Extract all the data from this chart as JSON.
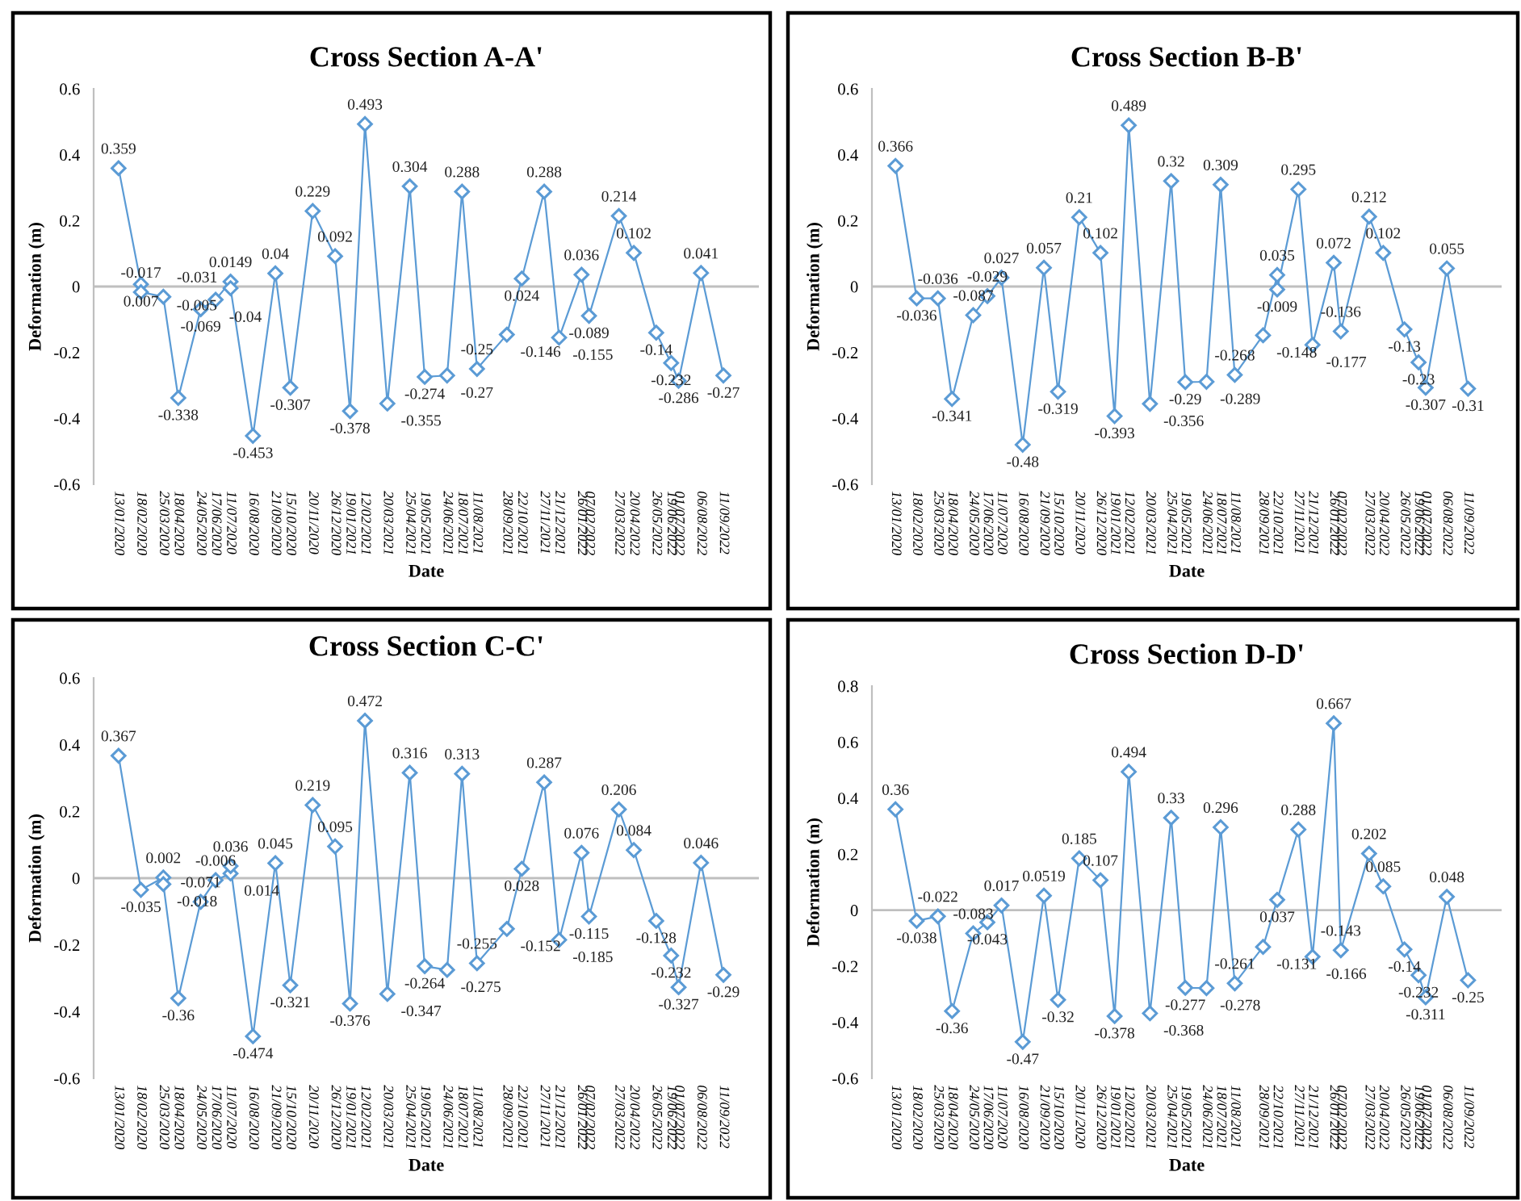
{
  "chart_data": [
    {
      "type": "line",
      "title": "Cross Section A-A'",
      "xlabel": "Date",
      "ylabel": "Deformation (m)",
      "marker": "diamond",
      "data_labels": true,
      "grid": false,
      "xlim": [
        "2019-12-04",
        "2022-11-07"
      ],
      "ylim": [
        -0.6,
        0.6
      ],
      "yticks": [
        -0.6,
        -0.4,
        -0.2,
        0,
        0.2,
        0.4,
        0.6
      ],
      "xticks": [
        {
          "value": "2020-01-13",
          "label": "13/01/2020"
        },
        {
          "value": "2020-02-18",
          "label": "18/02/2020"
        },
        {
          "value": "2020-03-25",
          "label": "25/03/2020"
        },
        {
          "value": "2020-04-18",
          "label": "18/04/2020"
        },
        {
          "value": "2020-05-24",
          "label": "24/05/2020"
        },
        {
          "value": "2020-06-17",
          "label": "17/06/2020"
        },
        {
          "value": "2020-07-11",
          "label": "11/07/2020"
        },
        {
          "value": "2020-08-16",
          "label": "16/08/2020"
        },
        {
          "value": "2020-09-21",
          "label": "21/09/2020"
        },
        {
          "value": "2020-10-15",
          "label": "15/10/2020"
        },
        {
          "value": "2020-11-20",
          "label": "20/11/2020"
        },
        {
          "value": "2020-12-26",
          "label": "26/12/2020"
        },
        {
          "value": "2021-01-19",
          "label": "19/01/2021"
        },
        {
          "value": "2021-02-12",
          "label": "12/02/2021"
        },
        {
          "value": "2021-03-20",
          "label": "20/03/2021"
        },
        {
          "value": "2021-04-25",
          "label": "25/04/2021"
        },
        {
          "value": "2021-05-19",
          "label": "19/05/2021"
        },
        {
          "value": "2021-06-24",
          "label": "24/06/2021"
        },
        {
          "value": "2021-07-18",
          "label": "18/07/2021"
        },
        {
          "value": "2021-08-11",
          "label": "11/08/2021"
        },
        {
          "value": "2021-09-28",
          "label": "28/09/2021"
        },
        {
          "value": "2021-10-22",
          "label": "22/10/2021"
        },
        {
          "value": "2021-11-27",
          "label": "27/11/2021"
        },
        {
          "value": "2021-12-21",
          "label": "21/12/2021"
        },
        {
          "value": "2022-01-26",
          "label": "26/01/2022"
        },
        {
          "value": "2022-02-07",
          "label": "07/02/2022"
        },
        {
          "value": "2022-03-27",
          "label": "27/03/2022"
        },
        {
          "value": "2022-04-20",
          "label": "20/04/2022"
        },
        {
          "value": "2022-05-26",
          "label": "26/05/2022"
        },
        {
          "value": "2022-06-19",
          "label": "19/06/2022"
        },
        {
          "value": "2022-07-01",
          "label": "01/07/2022"
        },
        {
          "value": "2022-08-06",
          "label": "06/08/2022"
        },
        {
          "value": "2022-09-11",
          "label": "11/09/2022"
        }
      ],
      "ref_lines": [
        {
          "axis": "y",
          "value": 0,
          "color": "#bfbfbf"
        }
      ],
      "series": [
        {
          "color": "#5b9bd5",
          "x": [
            "2020-01-13",
            "2020-02-18",
            "2020-02-18",
            "2020-03-25",
            "2020-04-18",
            "2020-05-24",
            "2020-06-17",
            "2020-07-11",
            "2020-07-11",
            "2020-08-16",
            "2020-09-21",
            "2020-10-15",
            "2020-11-20",
            "2020-12-26",
            "2021-01-19",
            "2021-02-12",
            "2021-03-20",
            "2021-04-25",
            "2021-05-19",
            "2021-06-24",
            "2021-07-18",
            "2021-08-11",
            "2021-09-28",
            "2021-10-22",
            "2021-11-27",
            "2021-12-21",
            "2022-01-26",
            "2022-02-07",
            "2022-03-27",
            "2022-04-20",
            "2022-05-26",
            "2022-06-19",
            "2022-07-01",
            "2022-08-06",
            "2022-09-11"
          ],
          "values": [
            0.359,
            0.007,
            -0.017,
            -0.031,
            -0.338,
            -0.069,
            -0.04,
            0.0149,
            -0.005,
            -0.453,
            0.04,
            -0.307,
            0.229,
            0.092,
            -0.378,
            0.493,
            -0.355,
            0.304,
            -0.274,
            -0.27,
            0.288,
            -0.25,
            -0.146,
            0.024,
            0.288,
            -0.155,
            0.036,
            -0.089,
            0.214,
            0.102,
            -0.14,
            -0.232,
            -0.286,
            0.041,
            -0.27
          ]
        }
      ]
    },
    {
      "type": "line",
      "title": "Cross Section B-B'",
      "xlabel": "Date",
      "ylabel": "Deformation (m)",
      "marker": "diamond",
      "data_labels": true,
      "grid": false,
      "xlim": [
        "2019-12-04",
        "2022-11-07"
      ],
      "ylim": [
        -0.6,
        0.6
      ],
      "yticks": [
        -0.6,
        -0.4,
        -0.2,
        0,
        0.2,
        0.4,
        0.6
      ],
      "xticks": [
        {
          "value": "2020-01-13",
          "label": "13/01/2020"
        },
        {
          "value": "2020-02-18",
          "label": "18/02/2020"
        },
        {
          "value": "2020-03-25",
          "label": "25/03/2020"
        },
        {
          "value": "2020-04-18",
          "label": "18/04/2020"
        },
        {
          "value": "2020-05-24",
          "label": "24/05/2020"
        },
        {
          "value": "2020-06-17",
          "label": "17/06/2020"
        },
        {
          "value": "2020-07-11",
          "label": "11/07/2020"
        },
        {
          "value": "2020-08-16",
          "label": "16/08/2020"
        },
        {
          "value": "2020-09-21",
          "label": "21/09/2020"
        },
        {
          "value": "2020-10-15",
          "label": "15/10/2020"
        },
        {
          "value": "2020-11-20",
          "label": "20/11/2020"
        },
        {
          "value": "2020-12-26",
          "label": "26/12/2020"
        },
        {
          "value": "2021-01-19",
          "label": "19/01/2021"
        },
        {
          "value": "2021-02-12",
          "label": "12/02/2021"
        },
        {
          "value": "2021-03-20",
          "label": "20/03/2021"
        },
        {
          "value": "2021-04-25",
          "label": "25/04/2021"
        },
        {
          "value": "2021-05-19",
          "label": "19/05/2021"
        },
        {
          "value": "2021-06-24",
          "label": "24/06/2021"
        },
        {
          "value": "2021-07-18",
          "label": "18/07/2021"
        },
        {
          "value": "2021-08-11",
          "label": "11/08/2021"
        },
        {
          "value": "2021-09-28",
          "label": "28/09/2021"
        },
        {
          "value": "2021-10-22",
          "label": "22/10/2021"
        },
        {
          "value": "2021-11-27",
          "label": "27/11/2021"
        },
        {
          "value": "2021-12-21",
          "label": "21/12/2021"
        },
        {
          "value": "2022-01-26",
          "label": "26/01/2022"
        },
        {
          "value": "2022-02-07",
          "label": "07/02/2022"
        },
        {
          "value": "2022-03-27",
          "label": "27/03/2022"
        },
        {
          "value": "2022-04-20",
          "label": "20/04/2022"
        },
        {
          "value": "2022-05-26",
          "label": "26/05/2022"
        },
        {
          "value": "2022-06-19",
          "label": "19/06/2022"
        },
        {
          "value": "2022-07-01",
          "label": "01/07/2022"
        },
        {
          "value": "2022-08-06",
          "label": "06/08/2022"
        },
        {
          "value": "2022-09-11",
          "label": "11/09/2022"
        }
      ],
      "ref_lines": [
        {
          "axis": "y",
          "value": 0,
          "color": "#bfbfbf"
        }
      ],
      "series": [
        {
          "color": "#5b9bd5",
          "x": [
            "2020-01-13",
            "2020-02-18",
            "2020-03-25",
            "2020-04-18",
            "2020-05-24",
            "2020-06-17",
            "2020-07-11",
            "2020-08-16",
            "2020-09-21",
            "2020-10-15",
            "2020-11-20",
            "2020-12-26",
            "2021-01-19",
            "2021-02-12",
            "2021-03-20",
            "2021-04-25",
            "2021-05-19",
            "2021-06-24",
            "2021-07-18",
            "2021-08-11",
            "2021-09-28",
            "2021-10-22",
            "2021-10-22",
            "2021-11-27",
            "2021-12-21",
            "2022-01-26",
            "2022-02-07",
            "2022-03-27",
            "2022-04-20",
            "2022-05-26",
            "2022-06-19",
            "2022-07-01",
            "2022-08-06",
            "2022-09-11"
          ],
          "values": [
            0.366,
            -0.036,
            -0.036,
            -0.341,
            -0.087,
            -0.029,
            0.027,
            -0.48,
            0.057,
            -0.319,
            0.21,
            0.102,
            -0.393,
            0.489,
            -0.356,
            0.32,
            -0.29,
            -0.289,
            0.309,
            -0.268,
            -0.148,
            0.035,
            -0.009,
            0.295,
            -0.177,
            0.072,
            -0.136,
            0.212,
            0.102,
            -0.13,
            -0.23,
            -0.307,
            0.055,
            -0.31
          ]
        }
      ]
    },
    {
      "type": "line",
      "title": "Cross Section C-C'",
      "xlabel": "Date",
      "ylabel": "Deformation (m)",
      "marker": "diamond",
      "data_labels": true,
      "grid": false,
      "xlim": [
        "2019-12-04",
        "2022-11-07"
      ],
      "ylim": [
        -0.6,
        0.6
      ],
      "yticks": [
        -0.6,
        -0.4,
        -0.2,
        0,
        0.2,
        0.4,
        0.6
      ],
      "xticks": [
        {
          "value": "2020-01-13",
          "label": "13/01/2020"
        },
        {
          "value": "2020-02-18",
          "label": "18/02/2020"
        },
        {
          "value": "2020-03-25",
          "label": "25/03/2020"
        },
        {
          "value": "2020-04-18",
          "label": "18/04/2020"
        },
        {
          "value": "2020-05-24",
          "label": "24/05/2020"
        },
        {
          "value": "2020-06-17",
          "label": "17/06/2020"
        },
        {
          "value": "2020-07-11",
          "label": "11/07/2020"
        },
        {
          "value": "2020-08-16",
          "label": "16/08/2020"
        },
        {
          "value": "2020-09-21",
          "label": "21/09/2020"
        },
        {
          "value": "2020-10-15",
          "label": "15/10/2020"
        },
        {
          "value": "2020-11-20",
          "label": "20/11/2020"
        },
        {
          "value": "2020-12-26",
          "label": "26/12/2020"
        },
        {
          "value": "2021-01-19",
          "label": "19/01/2021"
        },
        {
          "value": "2021-02-12",
          "label": "12/02/2021"
        },
        {
          "value": "2021-03-20",
          "label": "20/03/2021"
        },
        {
          "value": "2021-04-25",
          "label": "25/04/2021"
        },
        {
          "value": "2021-05-19",
          "label": "19/05/2021"
        },
        {
          "value": "2021-06-24",
          "label": "24/06/2021"
        },
        {
          "value": "2021-07-18",
          "label": "18/07/2021"
        },
        {
          "value": "2021-08-11",
          "label": "11/08/2021"
        },
        {
          "value": "2021-09-28",
          "label": "28/09/2021"
        },
        {
          "value": "2021-10-22",
          "label": "22/10/2021"
        },
        {
          "value": "2021-11-27",
          "label": "27/11/2021"
        },
        {
          "value": "2021-12-21",
          "label": "21/12/2021"
        },
        {
          "value": "2022-01-26",
          "label": "26/01/2022"
        },
        {
          "value": "2022-02-07",
          "label": "07/02/2022"
        },
        {
          "value": "2022-03-27",
          "label": "27/03/2022"
        },
        {
          "value": "2022-04-20",
          "label": "20/04/2022"
        },
        {
          "value": "2022-05-26",
          "label": "26/05/2022"
        },
        {
          "value": "2022-06-19",
          "label": "19/06/2022"
        },
        {
          "value": "2022-07-01",
          "label": "01/07/2022"
        },
        {
          "value": "2022-08-06",
          "label": "06/08/2022"
        },
        {
          "value": "2022-09-11",
          "label": "11/09/2022"
        }
      ],
      "ref_lines": [
        {
          "axis": "y",
          "value": 0,
          "color": "#bfbfbf"
        }
      ],
      "series": [
        {
          "color": "#5b9bd5",
          "x": [
            "2020-01-13",
            "2020-02-18",
            "2020-03-25",
            "2020-03-25",
            "2020-04-18",
            "2020-05-24",
            "2020-06-17",
            "2020-07-11",
            "2020-07-11",
            "2020-08-16",
            "2020-09-21",
            "2020-10-15",
            "2020-11-20",
            "2020-12-26",
            "2021-01-19",
            "2021-02-12",
            "2021-03-20",
            "2021-04-25",
            "2021-05-19",
            "2021-06-24",
            "2021-07-18",
            "2021-08-11",
            "2021-09-28",
            "2021-10-22",
            "2021-11-27",
            "2021-12-21",
            "2022-01-26",
            "2022-02-07",
            "2022-03-27",
            "2022-04-20",
            "2022-05-26",
            "2022-06-19",
            "2022-07-01",
            "2022-08-06",
            "2022-09-11"
          ],
          "values": [
            0.367,
            -0.035,
            0.002,
            -0.018,
            -0.36,
            -0.071,
            -0.006,
            0.014,
            0.036,
            -0.474,
            0.045,
            -0.321,
            0.219,
            0.095,
            -0.376,
            0.472,
            -0.347,
            0.316,
            -0.264,
            -0.275,
            0.313,
            -0.255,
            -0.152,
            0.028,
            0.287,
            -0.185,
            0.076,
            -0.115,
            0.206,
            0.084,
            -0.128,
            -0.232,
            -0.327,
            0.046,
            -0.29
          ]
        }
      ]
    },
    {
      "type": "line",
      "title": "Cross Section D-D'",
      "xlabel": "Date",
      "ylabel": "Deformation (m)",
      "marker": "diamond",
      "data_labels": true,
      "grid": false,
      "xlim": [
        "2019-12-04",
        "2022-11-07"
      ],
      "ylim": [
        -0.6,
        0.8
      ],
      "yticks": [
        -0.6,
        -0.4,
        -0.2,
        0,
        0.2,
        0.4,
        0.6,
        0.8
      ],
      "xticks": [
        {
          "value": "2020-01-13",
          "label": "13/01/2020"
        },
        {
          "value": "2020-02-18",
          "label": "18/02/2020"
        },
        {
          "value": "2020-03-25",
          "label": "25/03/2020"
        },
        {
          "value": "2020-04-18",
          "label": "18/04/2020"
        },
        {
          "value": "2020-05-24",
          "label": "24/05/2020"
        },
        {
          "value": "2020-06-17",
          "label": "17/06/2020"
        },
        {
          "value": "2020-07-11",
          "label": "11/07/2020"
        },
        {
          "value": "2020-08-16",
          "label": "16/08/2020"
        },
        {
          "value": "2020-09-21",
          "label": "21/09/2020"
        },
        {
          "value": "2020-10-15",
          "label": "15/10/2020"
        },
        {
          "value": "2020-11-20",
          "label": "20/11/2020"
        },
        {
          "value": "2020-12-26",
          "label": "26/12/2020"
        },
        {
          "value": "2021-01-19",
          "label": "19/01/2021"
        },
        {
          "value": "2021-02-12",
          "label": "12/02/2021"
        },
        {
          "value": "2021-03-20",
          "label": "20/03/2021"
        },
        {
          "value": "2021-04-25",
          "label": "25/04/2021"
        },
        {
          "value": "2021-05-19",
          "label": "19/05/2021"
        },
        {
          "value": "2021-06-24",
          "label": "24/06/2021"
        },
        {
          "value": "2021-07-18",
          "label": "18/07/2021"
        },
        {
          "value": "2021-08-11",
          "label": "11/08/2021"
        },
        {
          "value": "2021-09-28",
          "label": "28/09/2021"
        },
        {
          "value": "2021-10-22",
          "label": "22/10/2021"
        },
        {
          "value": "2021-11-27",
          "label": "27/11/2021"
        },
        {
          "value": "2021-12-21",
          "label": "21/12/2021"
        },
        {
          "value": "2022-01-26",
          "label": "26/01/2022"
        },
        {
          "value": "2022-02-07",
          "label": "07/02/2022"
        },
        {
          "value": "2022-03-27",
          "label": "27/03/2022"
        },
        {
          "value": "2022-04-20",
          "label": "20/04/2022"
        },
        {
          "value": "2022-05-26",
          "label": "26/05/2022"
        },
        {
          "value": "2022-06-19",
          "label": "19/06/2022"
        },
        {
          "value": "2022-07-01",
          "label": "01/07/2022"
        },
        {
          "value": "2022-08-06",
          "label": "06/08/2022"
        },
        {
          "value": "2022-09-11",
          "label": "11/09/2022"
        }
      ],
      "ref_lines": [
        {
          "axis": "y",
          "value": 0,
          "color": "#bfbfbf"
        }
      ],
      "series": [
        {
          "color": "#5b9bd5",
          "x": [
            "2020-01-13",
            "2020-02-18",
            "2020-03-25",
            "2020-04-18",
            "2020-05-24",
            "2020-06-17",
            "2020-07-11",
            "2020-08-16",
            "2020-09-21",
            "2020-10-15",
            "2020-11-20",
            "2020-12-26",
            "2021-01-19",
            "2021-02-12",
            "2021-03-20",
            "2021-04-25",
            "2021-05-19",
            "2021-06-24",
            "2021-07-18",
            "2021-08-11",
            "2021-09-28",
            "2021-10-22",
            "2021-11-27",
            "2021-12-21",
            "2022-01-26",
            "2022-02-07",
            "2022-03-27",
            "2022-04-20",
            "2022-05-26",
            "2022-06-19",
            "2022-07-01",
            "2022-08-06",
            "2022-09-11"
          ],
          "values": [
            0.36,
            -0.038,
            -0.022,
            -0.36,
            -0.083,
            -0.043,
            0.017,
            -0.47,
            0.0519,
            -0.32,
            0.185,
            0.107,
            -0.378,
            0.494,
            -0.368,
            0.33,
            -0.277,
            -0.278,
            0.296,
            -0.261,
            -0.131,
            0.037,
            0.288,
            -0.166,
            0.667,
            -0.143,
            0.202,
            0.085,
            -0.14,
            -0.232,
            -0.311,
            0.048,
            -0.25
          ]
        }
      ]
    }
  ]
}
